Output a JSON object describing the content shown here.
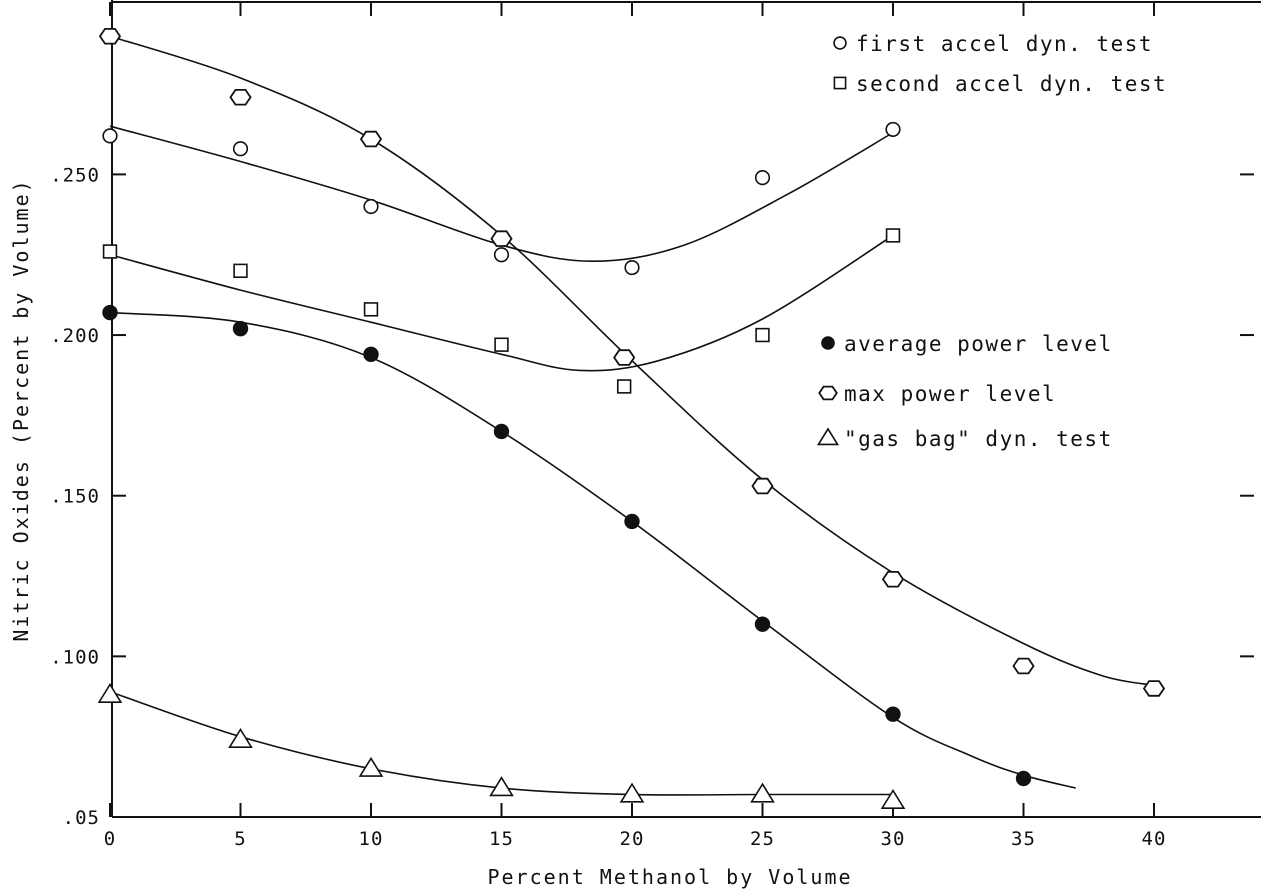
{
  "chart_data": {
    "type": "scatter",
    "title": "",
    "xlabel": "Percent Methanol by Volume",
    "ylabel": "Nitric Oxides (Percent by Volume)",
    "xlim": [
      0,
      45
    ],
    "ylim": [
      0.05,
      0.3
    ],
    "x_ticks": [
      0,
      5,
      10,
      15,
      20,
      25,
      30,
      35,
      40
    ],
    "x_tick_labels": [
      "0",
      "5",
      "10",
      "15",
      "20",
      "25",
      "30",
      "35",
      "40"
    ],
    "y_ticks": [
      0.05,
      0.1,
      0.15,
      0.2,
      0.25
    ],
    "y_tick_labels": [
      ".05",
      ".100",
      ".150",
      ".200",
      ".250"
    ],
    "grid": false,
    "legend_position": "right",
    "series": [
      {
        "name": "first accel dyn. test",
        "marker": "circle-open",
        "points": [
          [
            0,
            0.262
          ],
          [
            5,
            0.258
          ],
          [
            10,
            0.24
          ],
          [
            15,
            0.225
          ],
          [
            20,
            0.221
          ],
          [
            25,
            0.249
          ],
          [
            30,
            0.264
          ]
        ],
        "curve": [
          [
            0,
            0.265
          ],
          [
            5,
            0.254
          ],
          [
            10,
            0.242
          ],
          [
            15,
            0.228
          ],
          [
            18.5,
            0.223
          ],
          [
            22,
            0.228
          ],
          [
            26,
            0.244
          ],
          [
            30,
            0.263
          ]
        ]
      },
      {
        "name": "second accel dyn. test",
        "marker": "square-open",
        "points": [
          [
            0,
            0.226
          ],
          [
            5,
            0.22
          ],
          [
            10,
            0.208
          ],
          [
            15,
            0.197
          ],
          [
            19.7,
            0.184
          ],
          [
            25,
            0.2
          ],
          [
            30,
            0.231
          ]
        ],
        "curve": [
          [
            0,
            0.225
          ],
          [
            5,
            0.214
          ],
          [
            10,
            0.204
          ],
          [
            15,
            0.194
          ],
          [
            18,
            0.189
          ],
          [
            21,
            0.192
          ],
          [
            25,
            0.205
          ],
          [
            30,
            0.231
          ]
        ]
      },
      {
        "name": "average power level",
        "marker": "circle-filled",
        "points": [
          [
            0,
            0.207
          ],
          [
            5,
            0.202
          ],
          [
            10,
            0.194
          ],
          [
            15,
            0.17
          ],
          [
            20,
            0.142
          ],
          [
            25,
            0.11
          ],
          [
            30,
            0.082
          ],
          [
            35,
            0.062
          ]
        ],
        "curve": [
          [
            0,
            0.207
          ],
          [
            5,
            0.204
          ],
          [
            10,
            0.193
          ],
          [
            15,
            0.17
          ],
          [
            20,
            0.142
          ],
          [
            25,
            0.111
          ],
          [
            30,
            0.081
          ],
          [
            33,
            0.069
          ],
          [
            35,
            0.063
          ],
          [
            37,
            0.059
          ]
        ]
      },
      {
        "name": "max power level",
        "marker": "hexagon-open",
        "points": [
          [
            0,
            0.293
          ],
          [
            5,
            0.274
          ],
          [
            10,
            0.261
          ],
          [
            15,
            0.23
          ],
          [
            19.7,
            0.193
          ],
          [
            25,
            0.153
          ],
          [
            30,
            0.124
          ],
          [
            35,
            0.097
          ],
          [
            40,
            0.09
          ]
        ],
        "curve": [
          [
            0,
            0.293
          ],
          [
            5,
            0.28
          ],
          [
            10,
            0.261
          ],
          [
            15,
            0.231
          ],
          [
            20,
            0.192
          ],
          [
            25,
            0.155
          ],
          [
            30,
            0.126
          ],
          [
            35,
            0.104
          ],
          [
            38,
            0.094
          ],
          [
            40,
            0.091
          ]
        ]
      },
      {
        "name": "\"gas bag\" dyn. test",
        "marker": "triangle-open",
        "points": [
          [
            0,
            0.088
          ],
          [
            5,
            0.074
          ],
          [
            10,
            0.065
          ],
          [
            15,
            0.059
          ],
          [
            20,
            0.057
          ],
          [
            25,
            0.057
          ],
          [
            30,
            0.055
          ]
        ],
        "curve": [
          [
            0,
            0.089
          ],
          [
            5,
            0.075
          ],
          [
            10,
            0.065
          ],
          [
            15,
            0.059
          ],
          [
            20,
            0.057
          ],
          [
            25,
            0.057
          ],
          [
            30,
            0.057
          ]
        ]
      }
    ]
  }
}
